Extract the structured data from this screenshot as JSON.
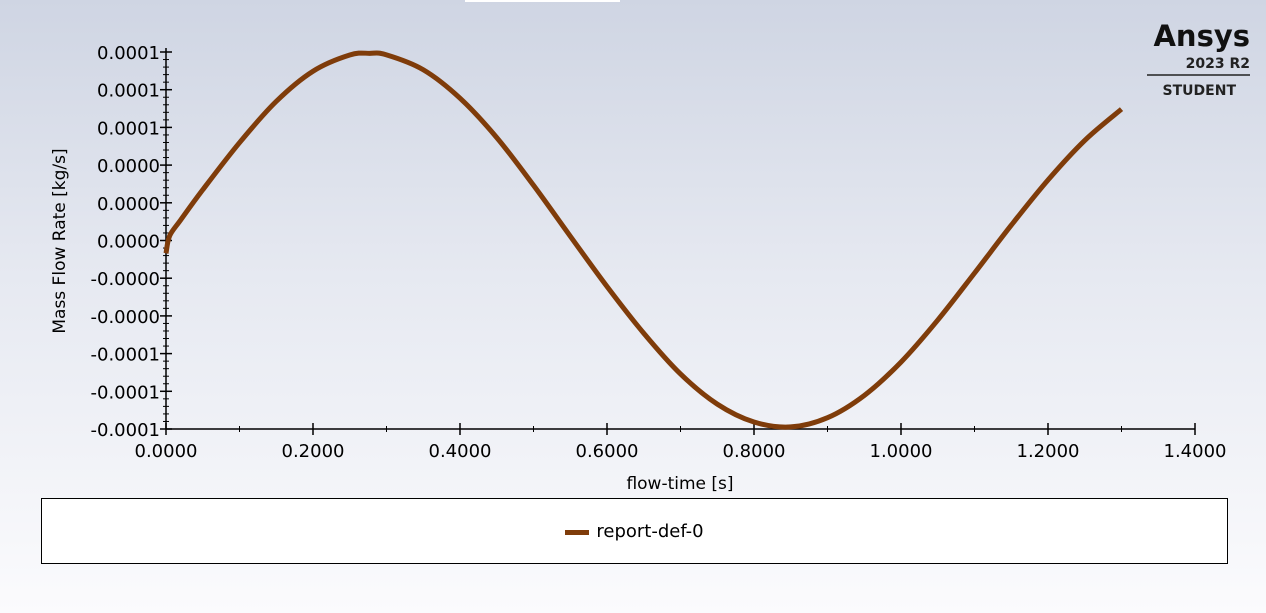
{
  "brand": {
    "name": "Ansys",
    "version": "2023 R2",
    "edition": "STUDENT"
  },
  "chart_data": {
    "type": "line",
    "title": "",
    "xlabel": "flow-time [s]",
    "ylabel": "Mass Flow Rate [kg/s]",
    "xlim": [
      0,
      1.4
    ],
    "ylim": [
      -0.00011,
      0.00011
    ],
    "x_ticks": [
      0.0,
      0.2,
      0.4,
      0.6,
      0.8,
      1.0,
      1.2,
      1.4
    ],
    "x_tick_labels": [
      "0.0000",
      "0.2000",
      "0.4000",
      "0.6000",
      "0.8000",
      "1.0000",
      "1.2000",
      "1.4000"
    ],
    "y_ticks": [
      0.0001,
      8e-05,
      6e-05,
      4e-05,
      2e-05,
      0.0,
      -2e-05,
      -4e-05,
      -6e-05,
      -8e-05,
      -0.0001
    ],
    "y_tick_labels": [
      "0.0001",
      "0.0001",
      "0.0001",
      "0.0000",
      "0.0000",
      "0.0000",
      "-0.0000",
      "-0.0000",
      "-0.0001",
      "-0.0001",
      "-0.0001"
    ],
    "grid": false,
    "legend_position": "bottom",
    "series": [
      {
        "name": "report-def-0",
        "color": "#7f3c0a",
        "x": [
          0.0,
          0.005,
          0.02,
          0.05,
          0.1,
          0.15,
          0.2,
          0.25,
          0.2772,
          0.3,
          0.35,
          0.4,
          0.45,
          0.5,
          0.55,
          0.6,
          0.65,
          0.7,
          0.75,
          0.8,
          0.85,
          0.9,
          0.95,
          1.0,
          1.05,
          1.1,
          1.15,
          1.2,
          1.25,
          1.3
        ],
        "y": [
          -6.8e-06,
          2.5e-06,
          1.09e-05,
          2.69e-05,
          5.19e-05,
          7.38e-05,
          8.98e-05,
          9.84e-05,
          9.93e-05,
          9.85e-05,
          9.06e-05,
          7.55e-05,
          5.46e-05,
          2.93e-05,
          2.3e-06,
          -2.44e-05,
          -4.92e-05,
          -7.08e-05,
          -8.68e-05,
          -9.63e-05,
          -9.89e-05,
          -9.4e-05,
          -8.22e-05,
          -6.45e-05,
          -4.22e-05,
          -1.73e-05,
          8.1e-06,
          3.21e-05,
          5.31e-05,
          6.97e-05
        ]
      }
    ]
  }
}
